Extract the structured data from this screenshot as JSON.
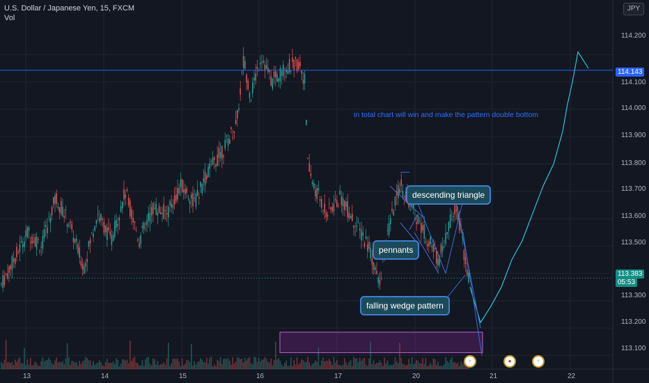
{
  "header": {
    "title": "U.S. Dollar / Japanese Yen, 15, FXCM",
    "volume_label": "Vol",
    "currency_button": "JPY"
  },
  "price_axis": {
    "ticks": [
      "114.200",
      "114.100",
      "114.000",
      "113.900",
      "113.800",
      "113.700",
      "113.600",
      "113.500",
      "113.300",
      "113.200",
      "113.100"
    ],
    "last_price": "113.383",
    "countdown": "05:53",
    "horizontal_line_price": "114.143"
  },
  "time_axis": {
    "ticks": [
      "13",
      "14",
      "15",
      "16",
      "17",
      "20",
      "21",
      "22"
    ]
  },
  "annotations": {
    "note": "in total chart will win and make the pattern double bottom",
    "descending_triangle": "descending triangle",
    "pennants": "pennants",
    "falling_wedge": "falling wedge pattern"
  },
  "events": [
    {
      "icon": "us-flag-icon"
    },
    {
      "icon": "jp-flag-icon"
    },
    {
      "icon": "us-flag-icon"
    }
  ],
  "colors": {
    "background": "#131722",
    "bull": "#26a69a",
    "bear": "#ef5350",
    "horizontal_line": "#2962ff",
    "projection": "#26c6da",
    "zone": "#9c27b0"
  },
  "chart_data": {
    "type": "candlestick",
    "symbol": "USDJPY",
    "timeframe": "15",
    "ylim": [
      113.05,
      114.4
    ],
    "horizontal_line": 114.143,
    "last_price": 113.383,
    "path_points": [
      [
        0,
        113.35
      ],
      [
        20,
        113.45
      ],
      [
        40,
        113.55
      ],
      [
        60,
        113.5
      ],
      [
        80,
        113.68
      ],
      [
        100,
        113.58
      ],
      [
        120,
        113.42
      ],
      [
        140,
        113.62
      ],
      [
        160,
        113.52
      ],
      [
        180,
        113.7
      ],
      [
        200,
        113.52
      ],
      [
        220,
        113.64
      ],
      [
        240,
        113.62
      ],
      [
        260,
        113.72
      ],
      [
        280,
        113.66
      ],
      [
        300,
        113.78
      ],
      [
        320,
        113.85
      ],
      [
        340,
        113.95
      ],
      [
        350,
        114.18
      ],
      [
        360,
        114.05
      ],
      [
        375,
        114.2
      ],
      [
        390,
        114.1
      ],
      [
        410,
        114.15
      ],
      [
        430,
        114.17
      ],
      [
        438,
        114.1
      ],
      [
        442,
        113.8
      ],
      [
        450,
        113.72
      ],
      [
        470,
        113.62
      ],
      [
        490,
        113.68
      ],
      [
        510,
        113.58
      ],
      [
        530,
        113.5
      ],
      [
        545,
        113.35
      ],
      [
        550,
        113.45
      ],
      [
        560,
        113.58
      ],
      [
        575,
        113.73
      ],
      [
        585,
        113.68
      ],
      [
        600,
        113.6
      ],
      [
        615,
        113.52
      ],
      [
        630,
        113.45
      ],
      [
        645,
        113.58
      ],
      [
        655,
        113.66
      ],
      [
        665,
        113.5
      ],
      [
        675,
        113.35
      ]
    ],
    "projection": [
      [
        675,
        113.35
      ],
      [
        690,
        113.22
      ],
      [
        705,
        113.28
      ],
      [
        720,
        113.35
      ],
      [
        735,
        113.45
      ],
      [
        750,
        113.52
      ],
      [
        765,
        113.62
      ],
      [
        780,
        113.72
      ],
      [
        795,
        113.8
      ],
      [
        808,
        113.92
      ],
      [
        815,
        114.02
      ],
      [
        822,
        114.1
      ],
      [
        830,
        114.21
      ],
      [
        845,
        114.15
      ]
    ]
  }
}
